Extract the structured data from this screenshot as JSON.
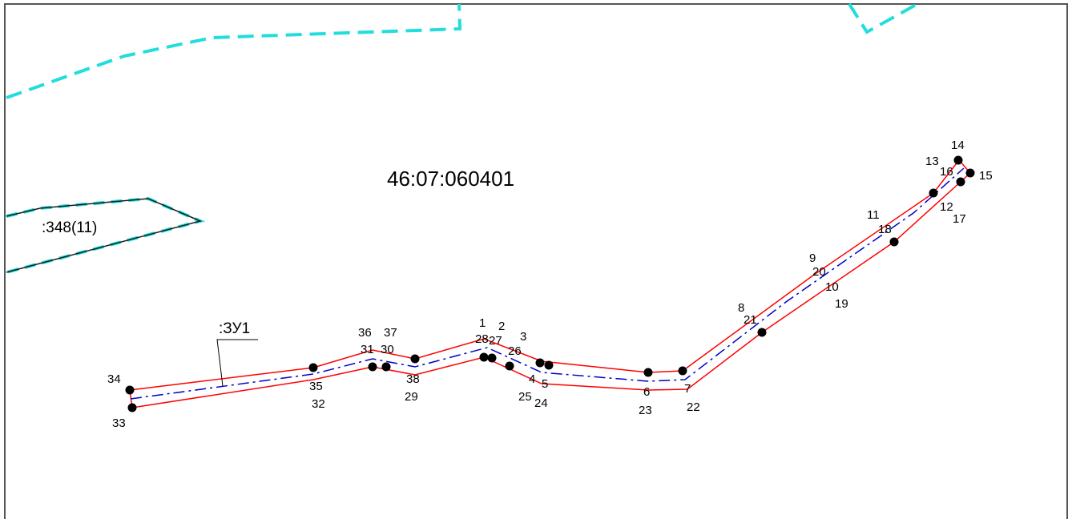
{
  "map": {
    "cadastral_quarter": "46:07:060401",
    "existing_parcel_label": ":348(11)",
    "new_parcel_label": ":ЗУ1",
    "colors": {
      "background": "#ffffff",
      "frame": "#555555",
      "quarter_boundary": "#22dddd",
      "parcel_outline": "#1a1a1a",
      "new_parcel_boundary": "#ff0000",
      "axis_line": "#0000cc",
      "point_marker": "#000000"
    },
    "points": [
      {
        "id": "1",
        "label": "1"
      },
      {
        "id": "2",
        "label": "2"
      },
      {
        "id": "3",
        "label": "3"
      },
      {
        "id": "4",
        "label": "4"
      },
      {
        "id": "5",
        "label": "5"
      },
      {
        "id": "6",
        "label": "6"
      },
      {
        "id": "7",
        "label": "7"
      },
      {
        "id": "8",
        "label": "8"
      },
      {
        "id": "9",
        "label": "9"
      },
      {
        "id": "10",
        "label": "10"
      },
      {
        "id": "11",
        "label": "11"
      },
      {
        "id": "12",
        "label": "12"
      },
      {
        "id": "13",
        "label": "13"
      },
      {
        "id": "14",
        "label": "14"
      },
      {
        "id": "15",
        "label": "15"
      },
      {
        "id": "16",
        "label": "16"
      },
      {
        "id": "17",
        "label": "17"
      },
      {
        "id": "18",
        "label": "18"
      },
      {
        "id": "19",
        "label": "19"
      },
      {
        "id": "20",
        "label": "20"
      },
      {
        "id": "21",
        "label": "21"
      },
      {
        "id": "22",
        "label": "22"
      },
      {
        "id": "23",
        "label": "23"
      },
      {
        "id": "24",
        "label": "24"
      },
      {
        "id": "25",
        "label": "25"
      },
      {
        "id": "26",
        "label": "26"
      },
      {
        "id": "27",
        "label": "27"
      },
      {
        "id": "28",
        "label": "28"
      },
      {
        "id": "29",
        "label": "29"
      },
      {
        "id": "30",
        "label": "30"
      },
      {
        "id": "31",
        "label": "31"
      },
      {
        "id": "32",
        "label": "32"
      },
      {
        "id": "33",
        "label": "33"
      },
      {
        "id": "34",
        "label": "34"
      },
      {
        "id": "35",
        "label": "35"
      },
      {
        "id": "36",
        "label": "36"
      },
      {
        "id": "37",
        "label": "37"
      },
      {
        "id": "38",
        "label": "38"
      }
    ]
  }
}
